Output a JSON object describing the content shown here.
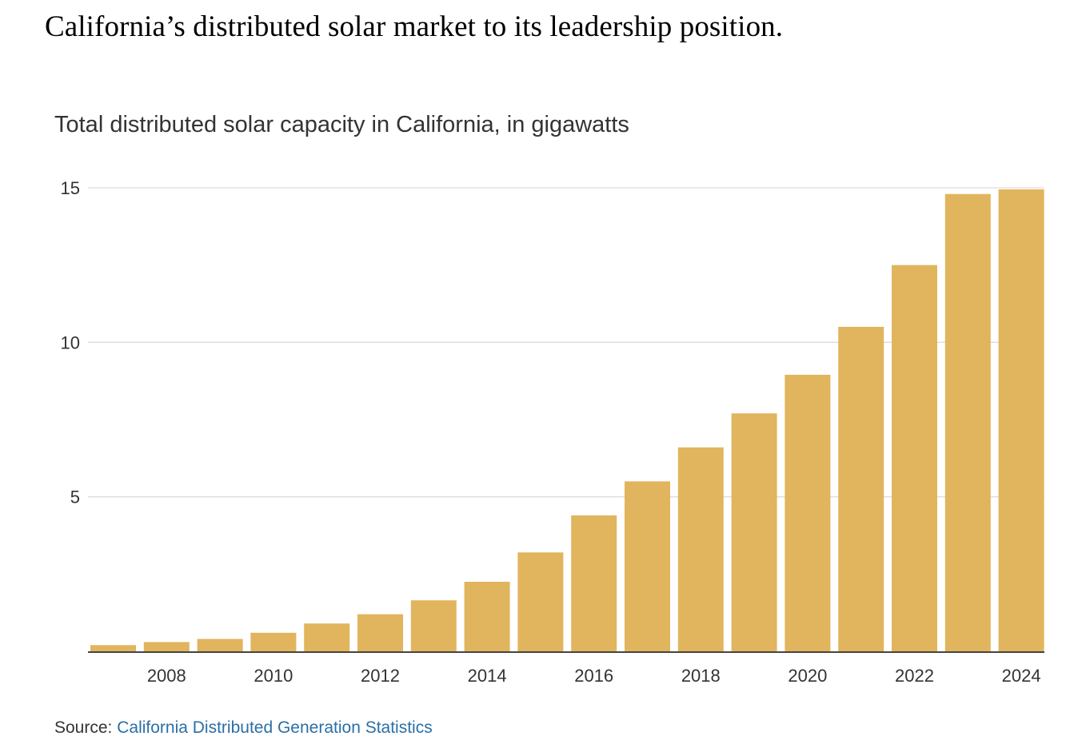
{
  "intro_text": "California’s distributed solar market to its leadership position.",
  "source": {
    "label": "Source:",
    "link_text": "California Distributed Generation Statistics"
  },
  "colors": {
    "bar": "#e1b55d",
    "axis": "#444444",
    "grid": "#dcdcdc",
    "tick_text": "#333333",
    "link": "#2a6fa6"
  },
  "chart_data": {
    "type": "bar",
    "title": "Total distributed solar capacity in California, in gigawatts",
    "xlabel": "",
    "ylabel": "",
    "categories": [
      "2007",
      "2008",
      "2009",
      "2010",
      "2011",
      "2012",
      "2013",
      "2014",
      "2015",
      "2016",
      "2017",
      "2018",
      "2019",
      "2020",
      "2021",
      "2022",
      "2023",
      "2024"
    ],
    "values": [
      0.2,
      0.3,
      0.4,
      0.6,
      0.9,
      1.2,
      1.65,
      2.25,
      3.2,
      4.4,
      5.5,
      6.6,
      7.7,
      8.95,
      10.5,
      12.5,
      14.8,
      14.95
    ],
    "x_tick_labels": [
      "2008",
      "2010",
      "2012",
      "2014",
      "2016",
      "2018",
      "2020",
      "2022",
      "2024"
    ],
    "y_ticks": [
      5,
      10,
      15
    ],
    "ylim": [
      0,
      15
    ],
    "grid": true,
    "legend": "none"
  }
}
